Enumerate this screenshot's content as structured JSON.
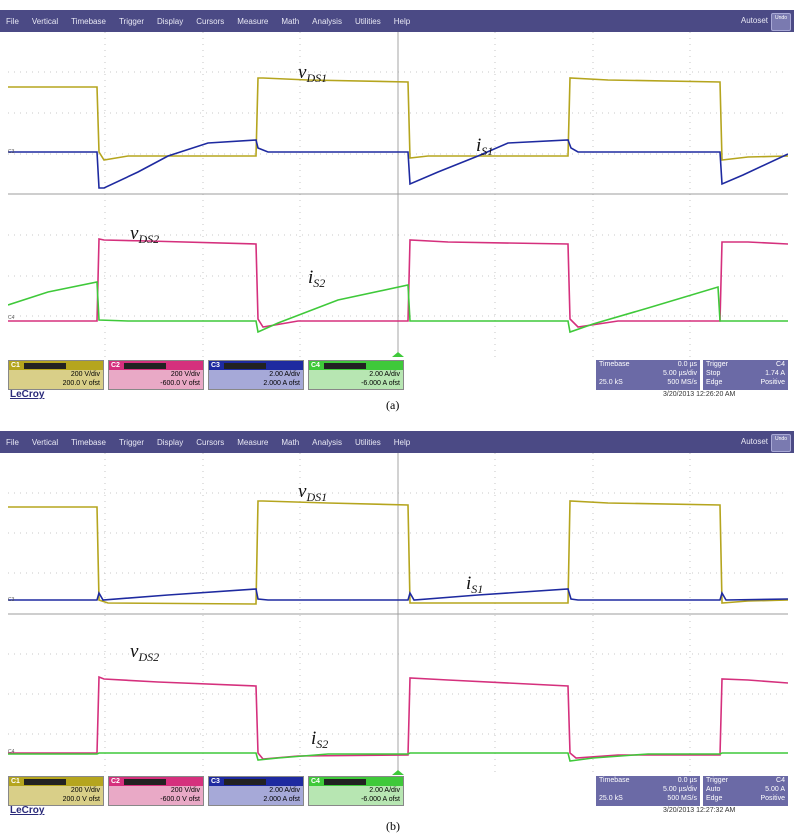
{
  "menu": [
    "File",
    "Vertical",
    "Timebase",
    "Trigger",
    "Display",
    "Cursors",
    "Measure",
    "Math",
    "Analysis",
    "Utilities",
    "Help"
  ],
  "autoset": "Autoset",
  "undo": "Undo",
  "colors": {
    "c1": "#b5a51e",
    "c2": "#d5307d",
    "c3": "#1e2aa0",
    "c4": "#3fc93a",
    "grid": "#b9b9b9",
    "menubar": "#4b4a85"
  },
  "panels": [
    {
      "caption": "(a)",
      "labels": {
        "vds1": "v",
        "vds1_sub": "DS1",
        "is1": "i",
        "is1_sub": "S1",
        "vds2": "v",
        "vds2_sub": "DS2",
        "is2": "i",
        "is2_sub": "S2"
      },
      "channels": [
        {
          "name": "C1",
          "scale": "200 V/div",
          "offset": "200.0 V ofst"
        },
        {
          "name": "C2",
          "scale": "200 V/div",
          "offset": "-600.0 V ofst"
        },
        {
          "name": "C3",
          "scale": "2.00 A/div",
          "offset": "2.000 A ofst"
        },
        {
          "name": "C4",
          "scale": "2.00 A/div",
          "offset": "-6.000 A ofst"
        }
      ],
      "timebase": {
        "label": "Timebase",
        "delay": "0.0 µs",
        "div": "5.00 µs/div",
        "samples": "25.0 kS",
        "rate": "500 MS/s"
      },
      "trigger": {
        "label": "Trigger",
        "ch": "C4",
        "mode": "Stop",
        "level": "1.74 A",
        "type": "Edge",
        "slope": "Positive"
      },
      "lecroy": "LeCroy",
      "date": "3/20/2013 12:26:20 AM"
    },
    {
      "caption": "(b)",
      "labels": {
        "vds1": "v",
        "vds1_sub": "DS1",
        "is1": "i",
        "is1_sub": "S1",
        "vds2": "v",
        "vds2_sub": "DS2",
        "is2": "i",
        "is2_sub": "S2"
      },
      "channels": [
        {
          "name": "C1",
          "scale": "200 V/div",
          "offset": "200.0 V ofst"
        },
        {
          "name": "C2",
          "scale": "200 V/div",
          "offset": "-600.0 V ofst"
        },
        {
          "name": "C3",
          "scale": "2.00 A/div",
          "offset": "2.000 A ofst"
        },
        {
          "name": "C4",
          "scale": "2.00 A/div",
          "offset": "-6.000 A ofst"
        }
      ],
      "timebase": {
        "label": "Timebase",
        "delay": "0.0 µs",
        "div": "5.00 µs/div",
        "samples": "25.0 kS",
        "rate": "500 MS/s"
      },
      "trigger": {
        "label": "Trigger",
        "ch": "C4",
        "mode": "Auto",
        "level": "5.00 A",
        "type": "Edge",
        "slope": "Positive"
      },
      "lecroy": "LeCroy",
      "date": "3/20/2013 12:27:32 AM"
    }
  ]
}
